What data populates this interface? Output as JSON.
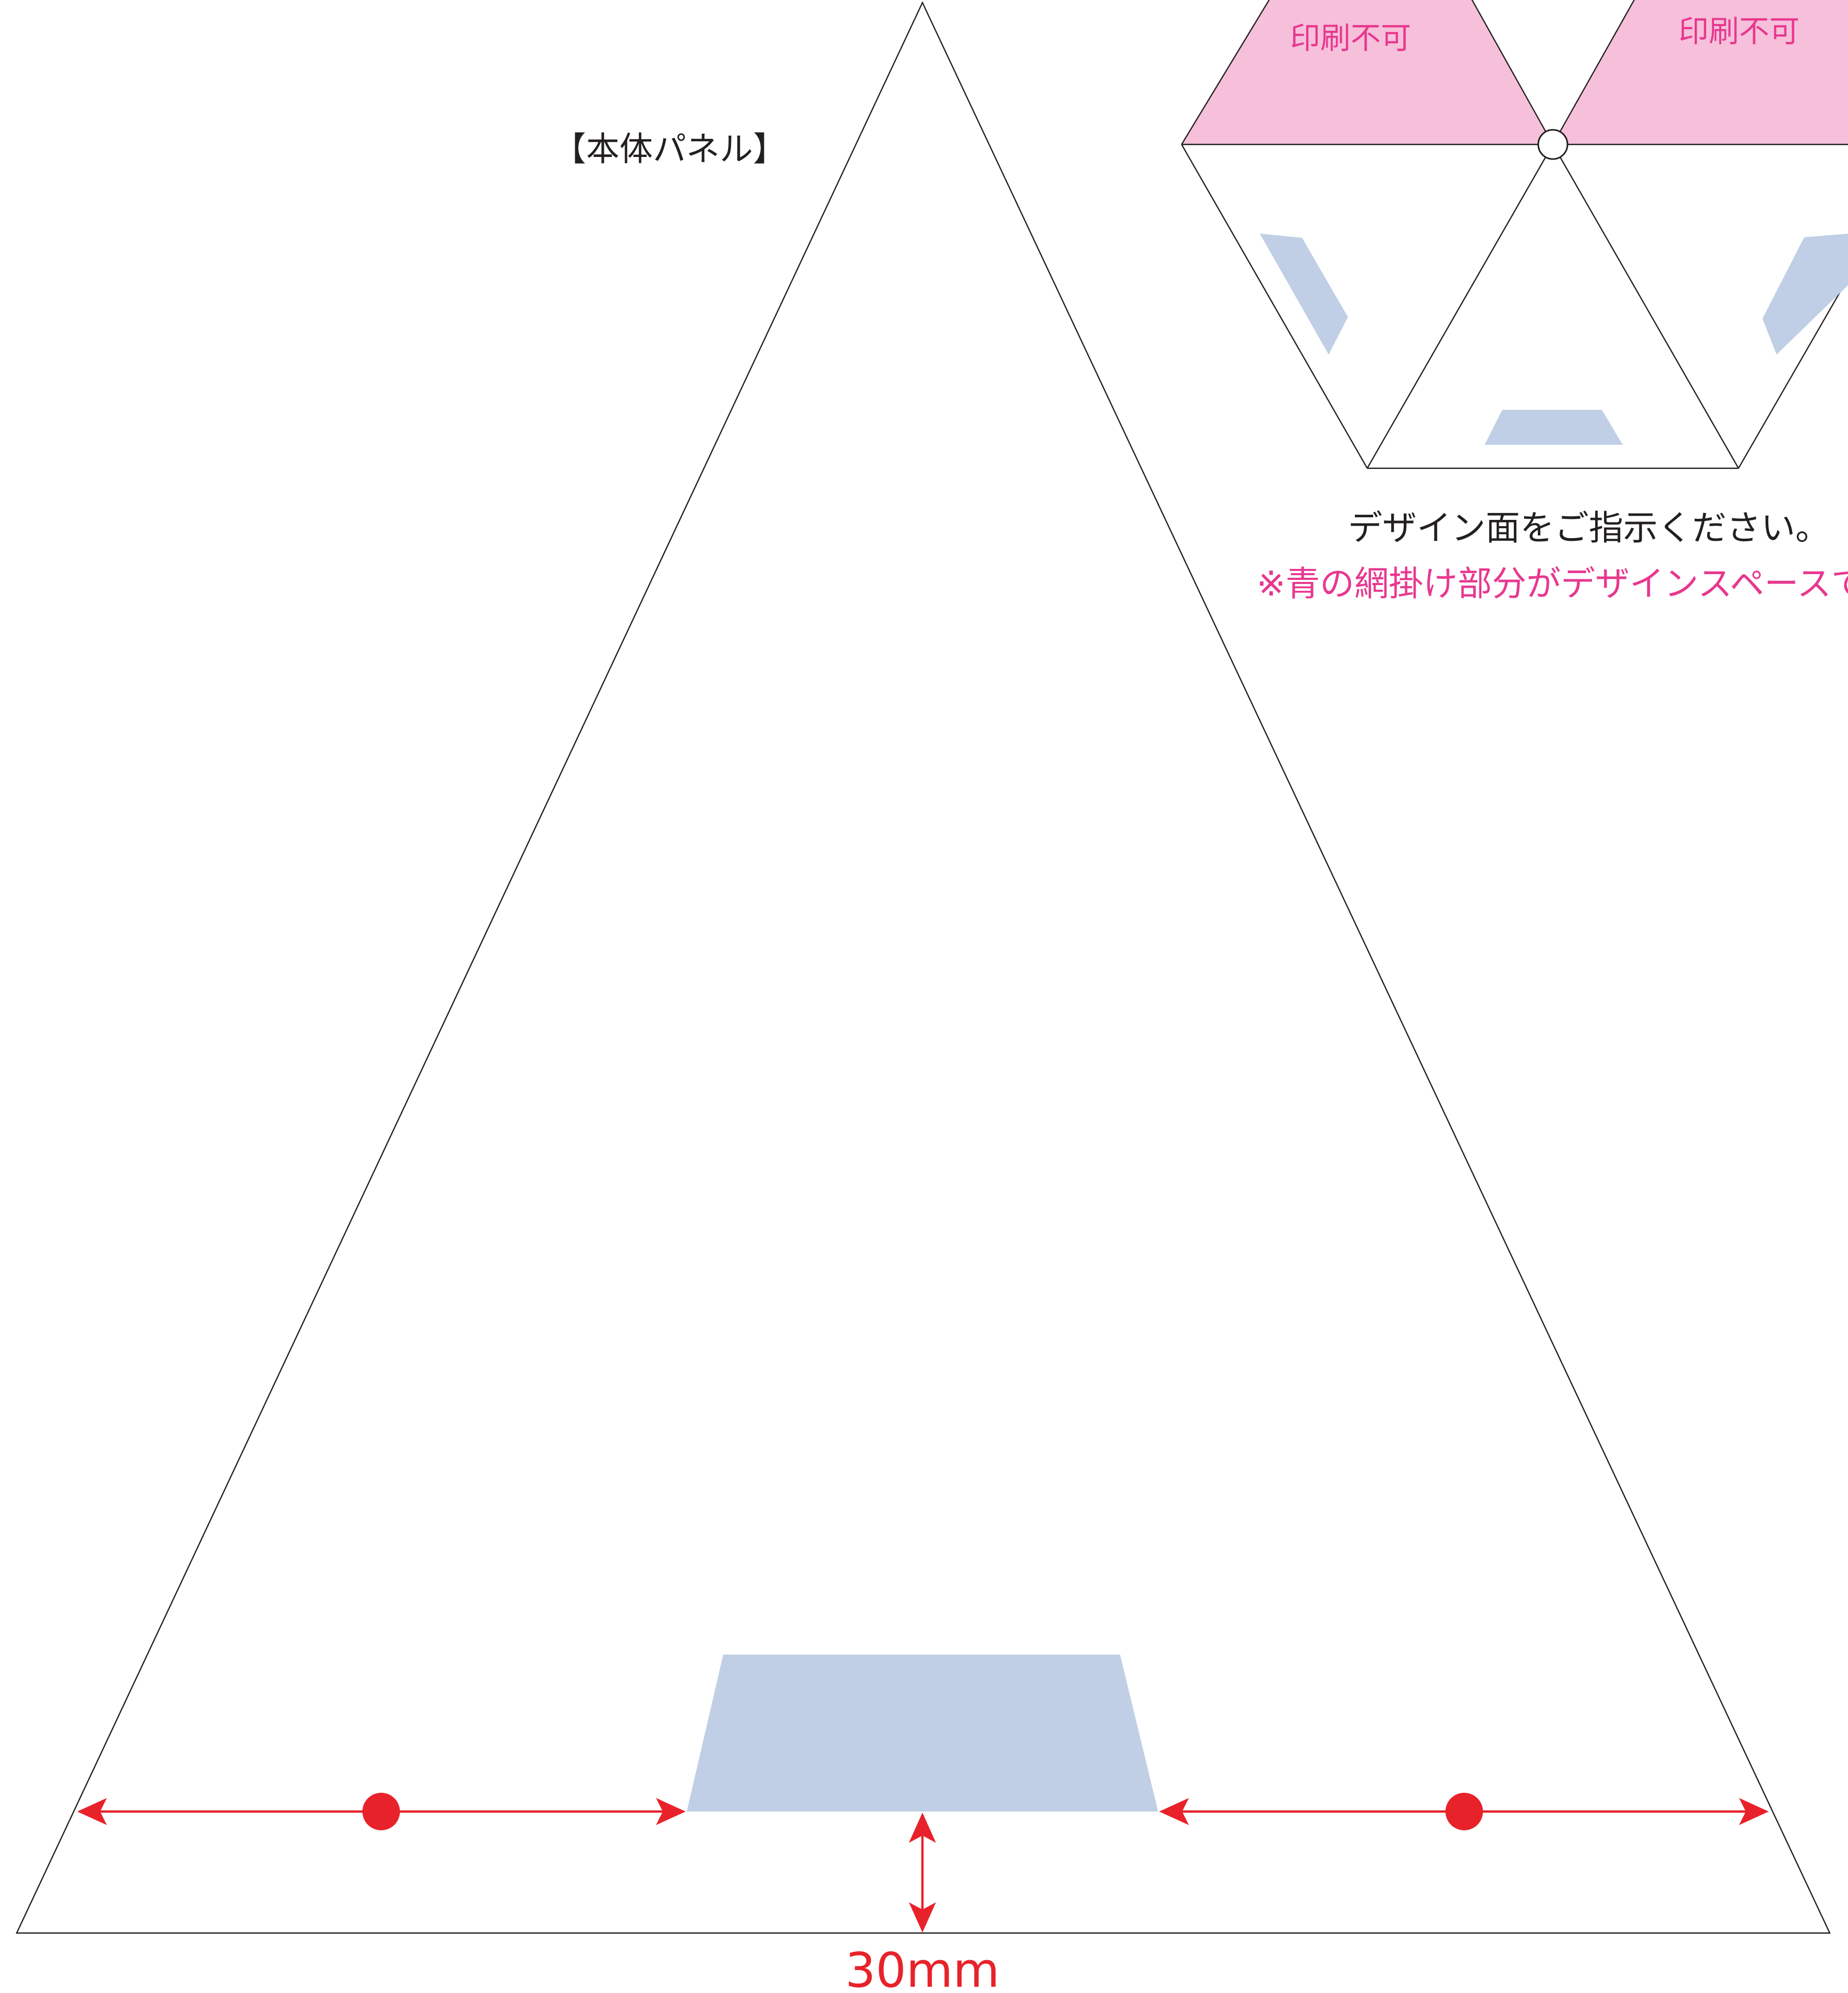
{
  "main_panel": {
    "title": "【本体パネル】",
    "dimension_label": "30mm"
  },
  "hexagon_guide": {
    "no_print_left": "印刷不可",
    "no_print_right": "印刷不可",
    "instruction": "デザイン面をご指示ください。",
    "note": "※青の網掛け部分がデザインスペースで"
  },
  "colors": {
    "design_space": "#c0cfe5",
    "no_print": "#f6c0da",
    "dimension": "#e8222a",
    "note_text": "#e8378f",
    "outline": "#231f20"
  }
}
